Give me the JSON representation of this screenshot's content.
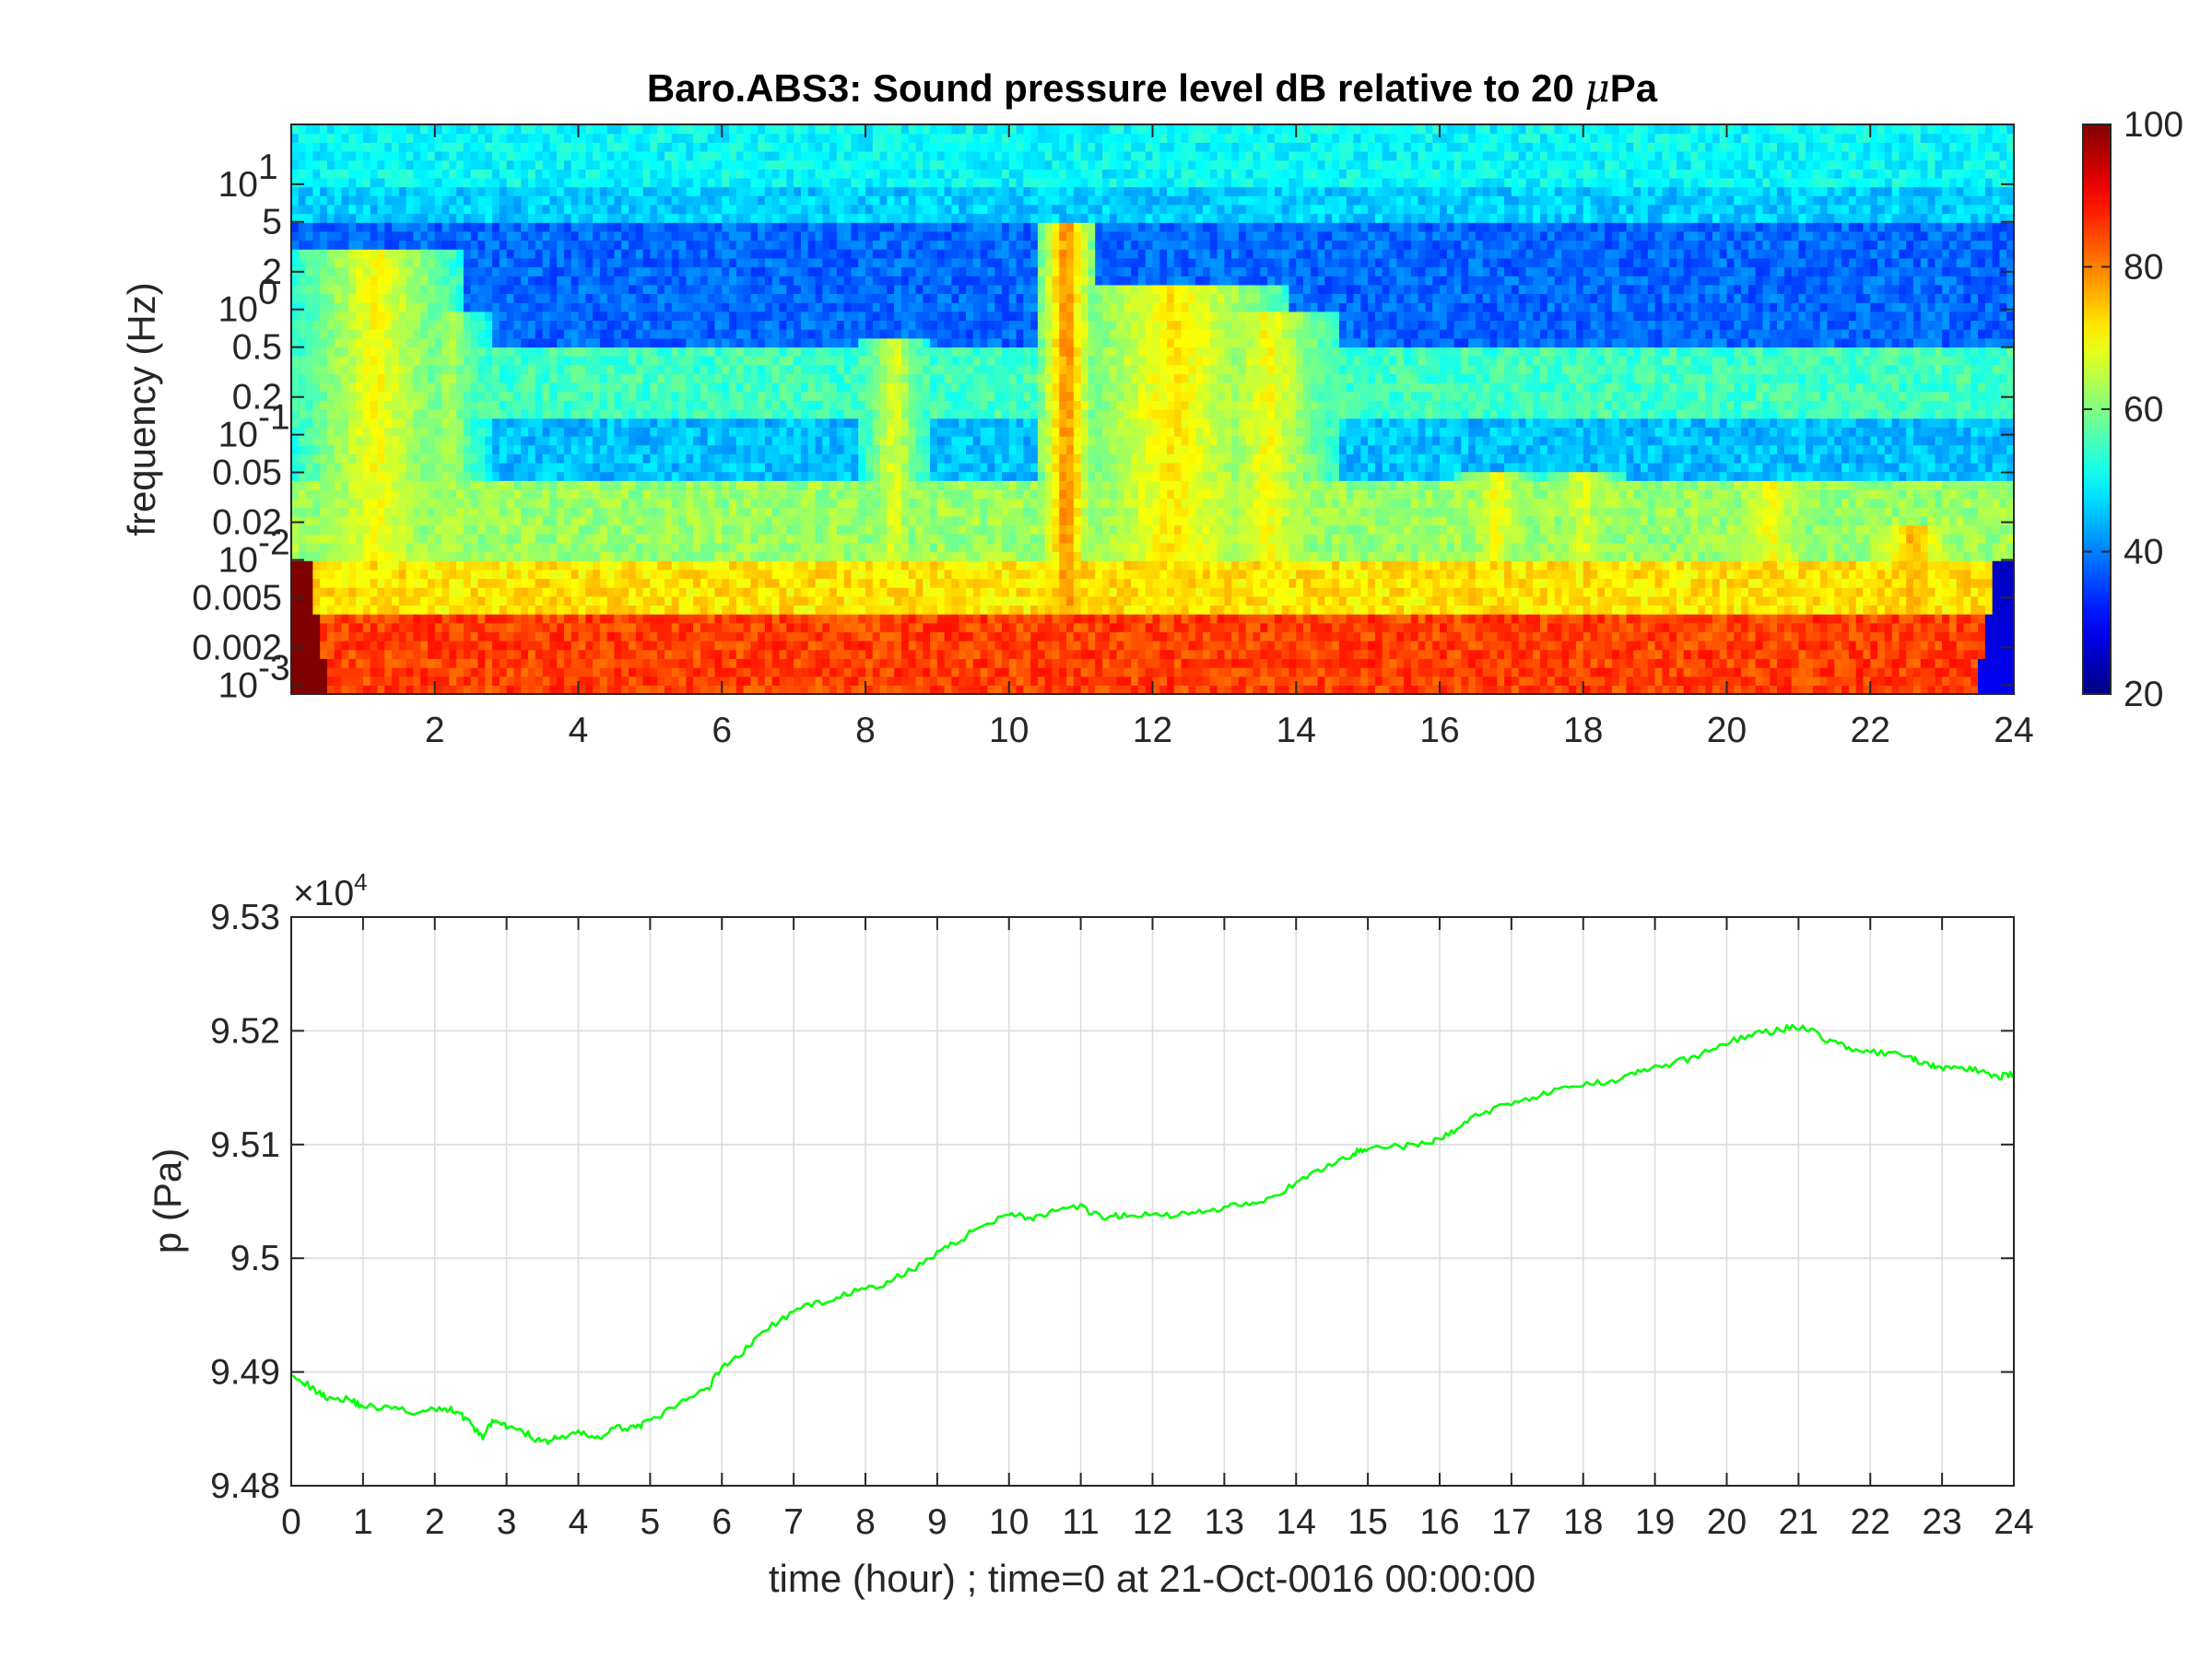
{
  "chart_data": [
    {
      "type": "heatmap",
      "title": "Baro.ABS3: Sound pressure level dB relative to 20 μPa",
      "xlabel": "",
      "ylabel": "frequency (Hz)",
      "xlim": [
        0,
        24
      ],
      "ylim": [
        0.00085,
        30
      ],
      "yscale": "log",
      "x_ticks": [
        2,
        4,
        6,
        8,
        10,
        12,
        14,
        16,
        18,
        20,
        22,
        24
      ],
      "y_ticks": [
        {
          "value": 0.001,
          "label": "10",
          "sup": "-3"
        },
        {
          "value": 0.002,
          "label": "0.002"
        },
        {
          "value": 0.005,
          "label": "0.005"
        },
        {
          "value": 0.01,
          "label": "10",
          "sup": "-2"
        },
        {
          "value": 0.02,
          "label": "0.02"
        },
        {
          "value": 0.05,
          "label": "0.05"
        },
        {
          "value": 0.1,
          "label": "10",
          "sup": "-1"
        },
        {
          "value": 0.2,
          "label": "0.2"
        },
        {
          "value": 0.5,
          "label": "0.5"
        },
        {
          "value": 1,
          "label": "10",
          "sup": "0"
        },
        {
          "value": 2,
          "label": "2"
        },
        {
          "value": 5,
          "label": "5"
        },
        {
          "value": 10,
          "label": "10",
          "sup": "1"
        }
      ],
      "colorbar": {
        "colormap": "jet",
        "range": [
          20,
          100
        ],
        "ticks": [
          20,
          40,
          60,
          80,
          100
        ]
      },
      "bands_db": [
        {
          "f_min": 10,
          "f_max": 30,
          "db": 50
        },
        {
          "f_min": 5,
          "f_max": 10,
          "db": 46
        },
        {
          "f_min": 0.5,
          "f_max": 5,
          "db": 38
        },
        {
          "f_min": 0.13,
          "f_max": 0.5,
          "db": 55
        },
        {
          "f_min": 0.04,
          "f_max": 0.13,
          "db": 45
        },
        {
          "f_min": 0.01,
          "f_max": 0.04,
          "db": 62
        },
        {
          "f_min": 0.004,
          "f_max": 0.01,
          "db": 72
        },
        {
          "f_min": 0.00085,
          "f_max": 0.004,
          "db": 85
        }
      ],
      "events": [
        {
          "t": 1.2,
          "f_top": 3,
          "db": 70,
          "width": 1.2
        },
        {
          "t": 2.2,
          "f_top": 1,
          "db": 64,
          "width": 0.6
        },
        {
          "t": 8.4,
          "f_top": 0.6,
          "db": 68,
          "width": 0.5
        },
        {
          "t": 10.8,
          "f_top": 5,
          "db": 80,
          "width": 0.35
        },
        {
          "t": 12.3,
          "f_top": 1.5,
          "db": 72,
          "width": 1.6
        },
        {
          "t": 13.6,
          "f_top": 1,
          "db": 70,
          "width": 1.0
        },
        {
          "t": 16.8,
          "f_top": 0.05,
          "db": 70,
          "width": 0.6
        },
        {
          "t": 18.0,
          "f_top": 0.05,
          "db": 68,
          "width": 0.6
        },
        {
          "t": 20.6,
          "f_top": 0.04,
          "db": 70,
          "width": 0.9
        },
        {
          "t": 22.6,
          "f_top": 0.02,
          "db": 76,
          "width": 0.7
        }
      ]
    },
    {
      "type": "line",
      "xlabel": "time (hour) ; time=0 at 21-Oct-0016 00:00:00",
      "ylabel": "p (Pa)",
      "y_multiplier": "×10",
      "y_multiplier_exp": "4",
      "xlim": [
        0,
        24
      ],
      "ylim": [
        9.48,
        9.53
      ],
      "x_ticks": [
        0,
        1,
        2,
        3,
        4,
        5,
        6,
        7,
        8,
        9,
        10,
        11,
        12,
        13,
        14,
        15,
        16,
        17,
        18,
        19,
        20,
        21,
        22,
        23,
        24
      ],
      "y_ticks": [
        "9.48",
        "9.49",
        "9.5",
        "9.51",
        "9.52",
        "9.53"
      ],
      "grid": true,
      "series": [
        {
          "color": "#00ff00",
          "x": [
            0,
            0.3,
            0.5,
            0.8,
            1,
            1.4,
            1.8,
            2.1,
            2.3,
            2.5,
            2.65,
            2.8,
            3,
            3.3,
            3.5,
            3.7,
            4,
            4.3,
            4.5,
            4.8,
            5,
            5.4,
            5.8,
            6,
            6.3,
            6.6,
            7,
            7.4,
            7.8,
            8.2,
            8.6,
            9,
            9.3,
            9.6,
            10,
            10.3,
            10.6,
            11,
            11.3,
            11.6,
            12,
            12.4,
            12.8,
            13.2,
            13.6,
            14,
            14.4,
            14.8,
            15,
            15.5,
            15.9,
            16.2,
            16.5,
            16.9,
            17.3,
            17.7,
            18.1,
            18.5,
            18.8,
            19.2,
            19.6,
            20,
            20.4,
            20.8,
            21.1,
            21.4,
            21.7,
            22.1,
            22.5,
            22.7,
            22.9,
            23.2,
            23.5,
            23.8,
            24
          ],
          "y": [
            9.49,
            9.4885,
            9.4878,
            9.4876,
            9.487,
            9.4868,
            9.4864,
            9.4868,
            9.4866,
            9.4855,
            9.4842,
            9.4856,
            9.4852,
            9.4845,
            9.4838,
            9.4842,
            9.4846,
            9.4842,
            9.485,
            9.4852,
            9.4856,
            9.4872,
            9.4885,
            9.4905,
            9.4918,
            9.4937,
            9.4953,
            9.4962,
            9.497,
            9.4975,
            9.4988,
            9.5005,
            9.5015,
            9.5028,
            9.504,
            9.5035,
            9.504,
            9.5045,
            9.5035,
            9.5038,
            9.5038,
            9.5038,
            9.5042,
            9.5048,
            9.5052,
            9.5065,
            9.508,
            9.5092,
            9.5098,
            9.5098,
            9.5102,
            9.5112,
            9.5125,
            9.5135,
            9.5142,
            9.5148,
            9.5153,
            9.5158,
            9.5165,
            9.517,
            9.5178,
            9.519,
            9.5197,
            9.5202,
            9.5203,
            9.5192,
            9.5185,
            9.518,
            9.5178,
            9.5172,
            9.5168,
            9.5168,
            9.5165,
            9.516,
            9.5162
          ]
        }
      ]
    }
  ]
}
